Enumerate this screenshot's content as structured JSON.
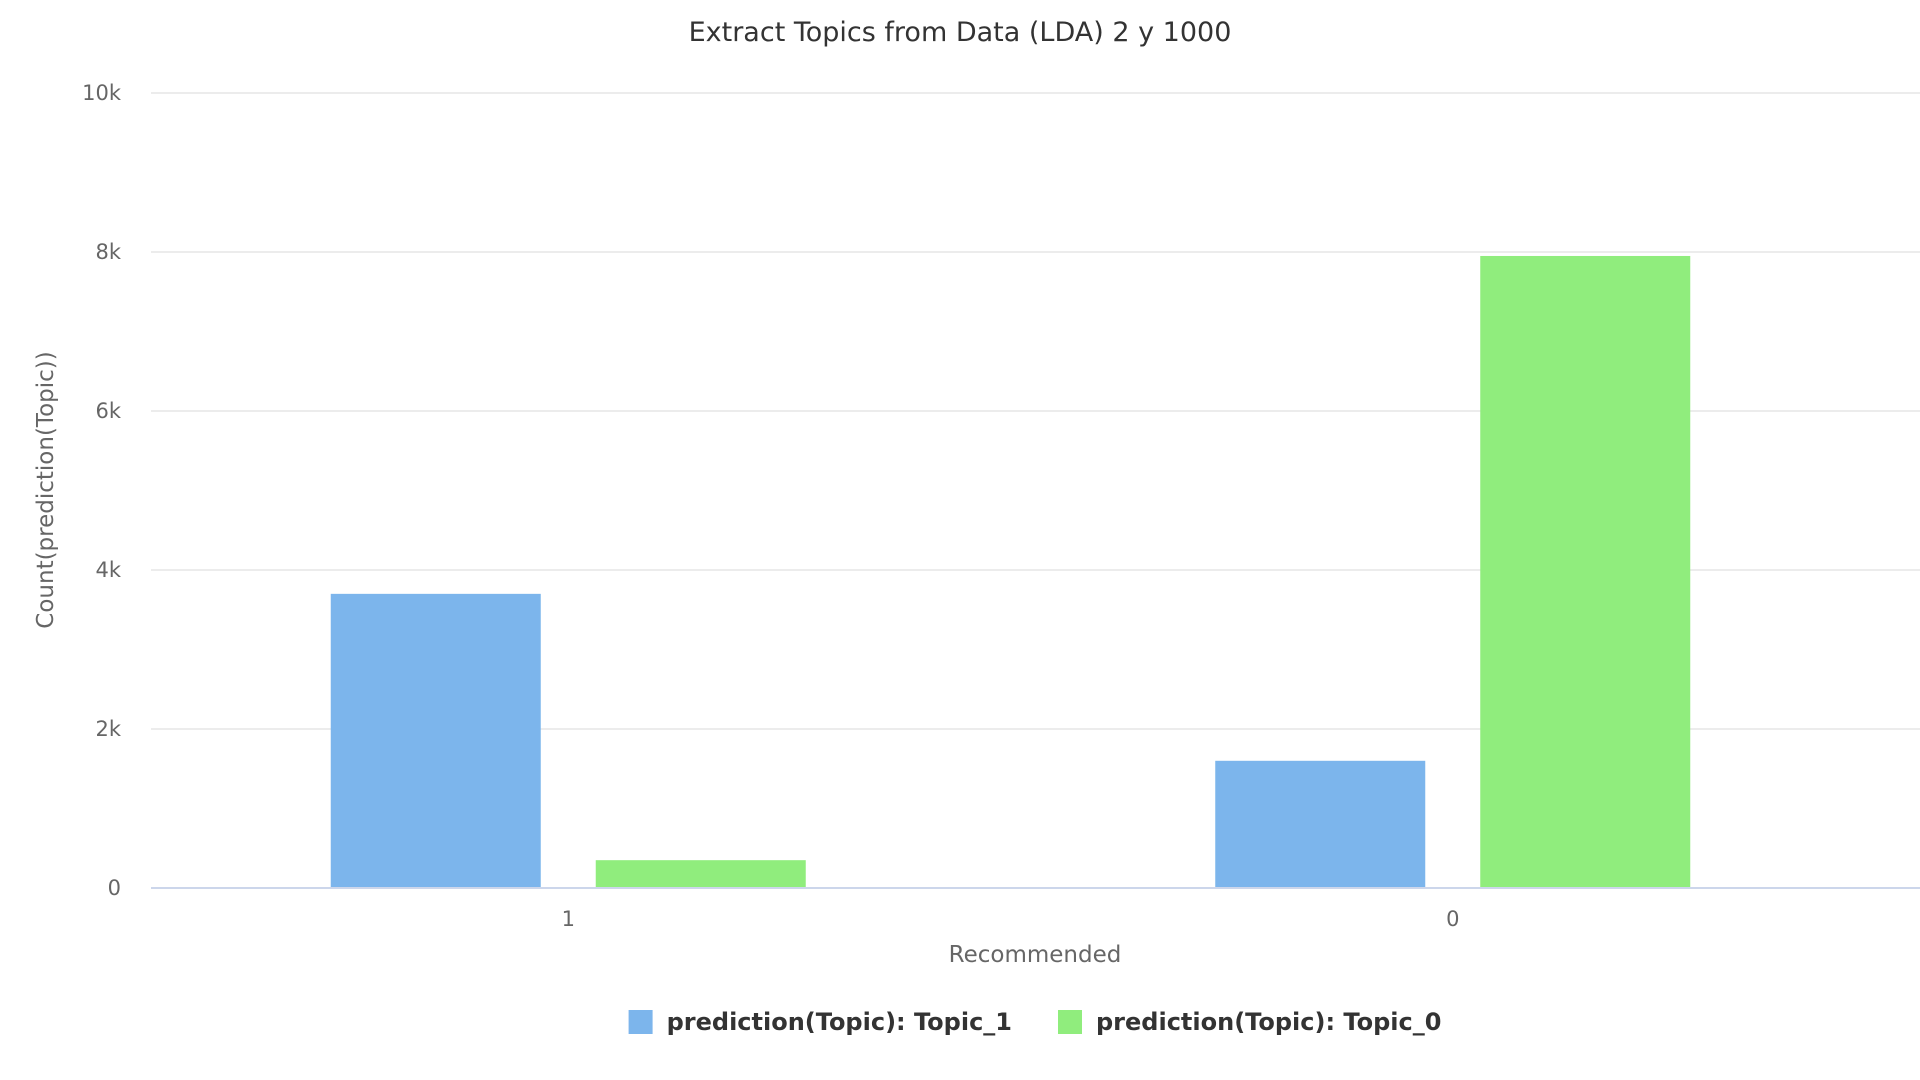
{
  "chart_data": {
    "type": "bar",
    "title": "Extract Topics from Data (LDA) 2 y 1000",
    "xlabel": "Recommended",
    "ylabel": "Count(prediction(Topic))",
    "categories": [
      "1",
      "0"
    ],
    "series": [
      {
        "name": "prediction(Topic): Topic_1",
        "color": "#7cb5ec",
        "values": [
          3700,
          1600
        ]
      },
      {
        "name": "prediction(Topic): Topic_0",
        "color": "#90ed7d",
        "values": [
          350,
          7950
        ]
      }
    ],
    "ylim": [
      0,
      10000
    ],
    "yticks": [
      {
        "value": 0,
        "label": "0"
      },
      {
        "value": 2000,
        "label": "2k"
      },
      {
        "value": 4000,
        "label": "4k"
      },
      {
        "value": 6000,
        "label": "6k"
      },
      {
        "value": 8000,
        "label": "8k"
      },
      {
        "value": 10000,
        "label": "10k"
      }
    ],
    "grid": true,
    "legend_position": "bottom-center"
  }
}
